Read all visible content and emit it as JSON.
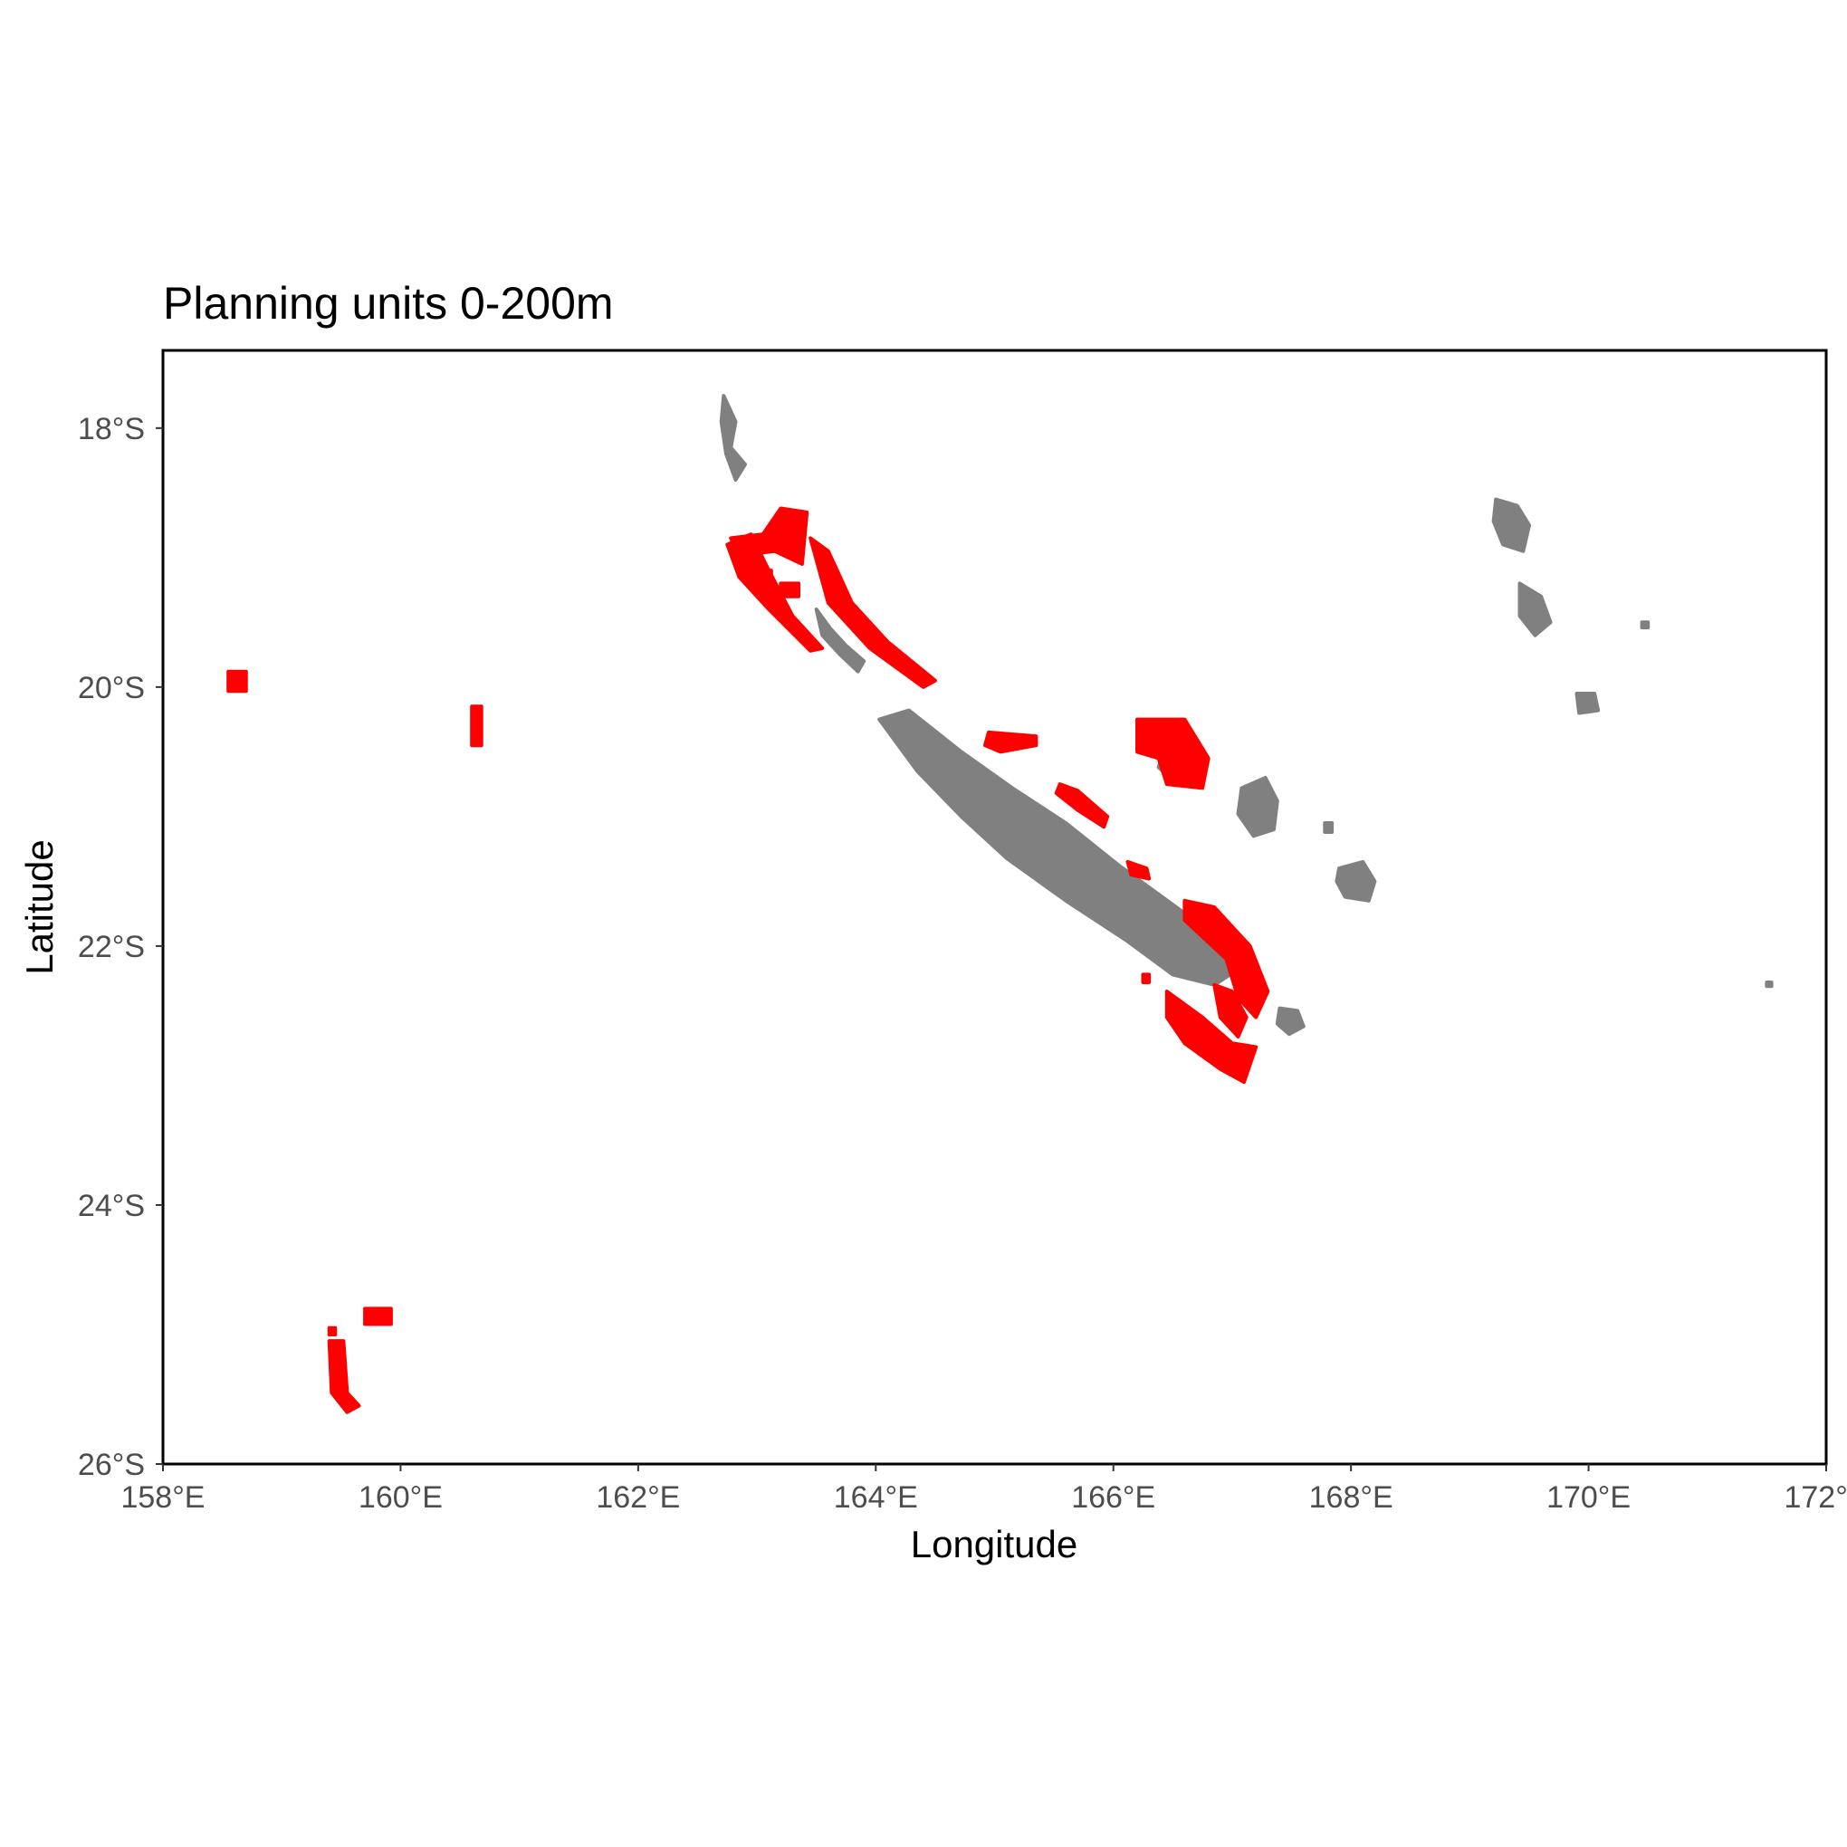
{
  "title": "Planning units 0-200m",
  "x_axis": {
    "label": "Longitude",
    "range": [
      158,
      172
    ],
    "ticks": [
      {
        "value": 158,
        "label": "158°E"
      },
      {
        "value": 160,
        "label": "160°E"
      },
      {
        "value": 162,
        "label": "162°E"
      },
      {
        "value": 164,
        "label": "164°E"
      },
      {
        "value": 166,
        "label": "166°E"
      },
      {
        "value": 168,
        "label": "168°E"
      },
      {
        "value": 170,
        "label": "170°E"
      },
      {
        "value": 172,
        "label": "172°E"
      }
    ]
  },
  "y_axis": {
    "label": "Latitude",
    "range": [
      -26,
      -17.4
    ],
    "ticks": [
      {
        "value": -18,
        "label": "18°S"
      },
      {
        "value": -20,
        "label": "20°S"
      },
      {
        "value": -22,
        "label": "22°S"
      },
      {
        "value": -24,
        "label": "24°S"
      },
      {
        "value": -26,
        "label": "26°S"
      }
    ]
  },
  "colors": {
    "land": "#808080",
    "planning_units": "#ff0000",
    "panel_border": "#000000",
    "tick_text": "#4d4d4d"
  },
  "land_features": [
    {
      "id": "grande-terre",
      "coords": [
        [
          164.03,
          -20.25
        ],
        [
          164.28,
          -20.18
        ],
        [
          164.72,
          -20.5
        ],
        [
          165.15,
          -20.78
        ],
        [
          165.6,
          -21.05
        ],
        [
          166.05,
          -21.38
        ],
        [
          166.5,
          -21.68
        ],
        [
          166.9,
          -21.95
        ],
        [
          167.05,
          -22.18
        ],
        [
          166.85,
          -22.3
        ],
        [
          166.5,
          -22.22
        ],
        [
          166.1,
          -21.95
        ],
        [
          165.6,
          -21.65
        ],
        [
          165.1,
          -21.32
        ],
        [
          164.72,
          -21.0
        ],
        [
          164.35,
          -20.65
        ]
      ]
    },
    {
      "id": "belep-isles",
      "coords": [
        [
          162.72,
          -17.75
        ],
        [
          162.82,
          -17.95
        ],
        [
          162.78,
          -18.15
        ],
        [
          162.9,
          -18.28
        ],
        [
          162.82,
          -18.4
        ],
        [
          162.74,
          -18.2
        ],
        [
          162.7,
          -17.95
        ]
      ]
    },
    {
      "id": "north-lagoon-islets",
      "coords": [
        [
          163.5,
          -19.4
        ],
        [
          163.62,
          -19.55
        ],
        [
          163.75,
          -19.68
        ],
        [
          163.9,
          -19.8
        ],
        [
          163.85,
          -19.88
        ],
        [
          163.7,
          -19.75
        ],
        [
          163.55,
          -19.6
        ]
      ]
    },
    {
      "id": "ouvea-atoll",
      "coords": [
        [
          166.43,
          -20.48
        ],
        [
          166.58,
          -20.42
        ],
        [
          166.67,
          -20.55
        ],
        [
          166.6,
          -20.68
        ],
        [
          166.48,
          -20.7
        ],
        [
          166.38,
          -20.62
        ]
      ]
    },
    {
      "id": "lifou",
      "coords": [
        [
          167.08,
          -20.78
        ],
        [
          167.28,
          -20.7
        ],
        [
          167.38,
          -20.88
        ],
        [
          167.35,
          -21.1
        ],
        [
          167.18,
          -21.15
        ],
        [
          167.05,
          -20.98
        ]
      ]
    },
    {
      "id": "mare",
      "coords": [
        [
          167.9,
          -21.4
        ],
        [
          168.1,
          -21.35
        ],
        [
          168.2,
          -21.5
        ],
        [
          168.15,
          -21.65
        ],
        [
          167.95,
          -21.62
        ],
        [
          167.88,
          -21.5
        ]
      ]
    },
    {
      "id": "tiga",
      "coords": [
        [
          167.78,
          -21.05
        ],
        [
          167.84,
          -21.05
        ],
        [
          167.84,
          -21.12
        ],
        [
          167.78,
          -21.12
        ]
      ]
    },
    {
      "id": "isle-of-pines",
      "coords": [
        [
          167.4,
          -22.48
        ],
        [
          167.55,
          -22.5
        ],
        [
          167.6,
          -22.62
        ],
        [
          167.48,
          -22.68
        ],
        [
          167.38,
          -22.6
        ]
      ]
    },
    {
      "id": "chesterfield-n",
      "coords": [
        [
          169.22,
          -18.55
        ],
        [
          169.4,
          -18.6
        ],
        [
          169.5,
          -18.75
        ],
        [
          169.45,
          -18.95
        ],
        [
          169.28,
          -18.9
        ],
        [
          169.2,
          -18.72
        ]
      ]
    },
    {
      "id": "chesterfield-mid",
      "coords": [
        [
          169.42,
          -19.2
        ],
        [
          169.6,
          -19.3
        ],
        [
          169.68,
          -19.5
        ],
        [
          169.55,
          -19.6
        ],
        [
          169.42,
          -19.45
        ]
      ]
    },
    {
      "id": "chesterfield-s",
      "coords": [
        [
          169.9,
          -20.05
        ],
        [
          170.05,
          -20.05
        ],
        [
          170.08,
          -20.18
        ],
        [
          169.92,
          -20.2
        ]
      ]
    },
    {
      "id": "chesterfield-islet",
      "coords": [
        [
          170.45,
          -19.5
        ],
        [
          170.5,
          -19.5
        ],
        [
          170.5,
          -19.54
        ],
        [
          170.45,
          -19.54
        ]
      ]
    },
    {
      "id": "walpole",
      "coords": [
        [
          171.5,
          -22.28
        ],
        [
          171.54,
          -22.28
        ],
        [
          171.54,
          -22.31
        ],
        [
          171.5,
          -22.31
        ]
      ]
    }
  ],
  "planning_unit_features": [
    {
      "id": "north-lagoon-west-arm",
      "coords": [
        [
          162.75,
          -18.9
        ],
        [
          162.95,
          -18.82
        ],
        [
          163.1,
          -19.1
        ],
        [
          163.3,
          -19.45
        ],
        [
          163.55,
          -19.7
        ],
        [
          163.45,
          -19.72
        ],
        [
          163.1,
          -19.4
        ],
        [
          162.85,
          -19.15
        ]
      ]
    },
    {
      "id": "north-lagoon-north",
      "coords": [
        [
          162.78,
          -18.85
        ],
        [
          163.05,
          -18.82
        ],
        [
          163.2,
          -18.62
        ],
        [
          163.42,
          -18.65
        ],
        [
          163.38,
          -19.05
        ],
        [
          163.15,
          -18.95
        ],
        [
          162.85,
          -18.98
        ]
      ]
    },
    {
      "id": "north-lagoon-east-arm",
      "coords": [
        [
          163.45,
          -18.85
        ],
        [
          163.6,
          -18.95
        ],
        [
          163.8,
          -19.35
        ],
        [
          164.1,
          -19.65
        ],
        [
          164.5,
          -19.95
        ],
        [
          164.4,
          -20.0
        ],
        [
          163.95,
          -19.7
        ],
        [
          163.6,
          -19.35
        ]
      ]
    },
    {
      "id": "north-lagoon-patch",
      "coords": [
        [
          163.2,
          -19.2
        ],
        [
          163.35,
          -19.2
        ],
        [
          163.35,
          -19.3
        ],
        [
          163.2,
          -19.3
        ]
      ]
    },
    {
      "id": "north-lagoon-patch-2",
      "coords": [
        [
          163.0,
          -19.1
        ],
        [
          163.12,
          -19.1
        ],
        [
          163.12,
          -19.2
        ],
        [
          163.0,
          -19.2
        ]
      ]
    },
    {
      "id": "east-coast-reef-a",
      "coords": [
        [
          164.95,
          -20.35
        ],
        [
          165.35,
          -20.38
        ],
        [
          165.35,
          -20.45
        ],
        [
          165.05,
          -20.5
        ],
        [
          164.92,
          -20.45
        ]
      ]
    },
    {
      "id": "east-coast-reef-b",
      "coords": [
        [
          165.55,
          -20.75
        ],
        [
          165.7,
          -20.8
        ],
        [
          165.95,
          -21.0
        ],
        [
          165.92,
          -21.08
        ],
        [
          165.7,
          -20.95
        ],
        [
          165.52,
          -20.82
        ]
      ]
    },
    {
      "id": "east-coast-reef-c",
      "coords": [
        [
          166.12,
          -21.35
        ],
        [
          166.28,
          -21.4
        ],
        [
          166.3,
          -21.48
        ],
        [
          166.15,
          -21.45
        ]
      ]
    },
    {
      "id": "ouvea-reef",
      "coords": [
        [
          166.2,
          -20.25
        ],
        [
          166.6,
          -20.25
        ],
        [
          166.8,
          -20.55
        ],
        [
          166.75,
          -20.78
        ],
        [
          166.45,
          -20.75
        ],
        [
          166.38,
          -20.55
        ],
        [
          166.2,
          -20.5
        ]
      ]
    },
    {
      "id": "south-lagoon-east",
      "coords": [
        [
          166.6,
          -21.65
        ],
        [
          166.85,
          -21.7
        ],
        [
          167.15,
          -22.0
        ],
        [
          167.3,
          -22.35
        ],
        [
          167.2,
          -22.55
        ],
        [
          167.05,
          -22.4
        ],
        [
          166.95,
          -22.1
        ],
        [
          166.6,
          -21.8
        ]
      ]
    },
    {
      "id": "south-lagoon-south",
      "coords": [
        [
          166.45,
          -22.35
        ],
        [
          166.75,
          -22.55
        ],
        [
          167.0,
          -22.75
        ],
        [
          167.2,
          -22.78
        ],
        [
          167.1,
          -23.05
        ],
        [
          166.9,
          -22.95
        ],
        [
          166.6,
          -22.75
        ],
        [
          166.45,
          -22.55
        ]
      ]
    },
    {
      "id": "south-lagoon-inner",
      "coords": [
        [
          166.85,
          -22.3
        ],
        [
          167.0,
          -22.35
        ],
        [
          167.12,
          -22.55
        ],
        [
          167.05,
          -22.7
        ],
        [
          166.9,
          -22.55
        ]
      ]
    },
    {
      "id": "west-coast-islet",
      "coords": [
        [
          166.25,
          -22.22
        ],
        [
          166.3,
          -22.22
        ],
        [
          166.3,
          -22.28
        ],
        [
          166.25,
          -22.28
        ]
      ]
    },
    {
      "id": "bellona-north",
      "coords": [
        [
          158.55,
          -19.88
        ],
        [
          158.7,
          -19.88
        ],
        [
          158.7,
          -20.03
        ],
        [
          158.55,
          -20.03
        ]
      ]
    },
    {
      "id": "bellona-east",
      "coords": [
        [
          160.6,
          -20.15
        ],
        [
          160.68,
          -20.15
        ],
        [
          160.68,
          -20.45
        ],
        [
          160.6,
          -20.45
        ]
      ]
    },
    {
      "id": "bellona-south-west",
      "coords": [
        [
          159.4,
          -25.05
        ],
        [
          159.52,
          -25.05
        ],
        [
          159.55,
          -25.45
        ],
        [
          159.65,
          -25.55
        ],
        [
          159.55,
          -25.6
        ],
        [
          159.42,
          -25.45
        ]
      ]
    },
    {
      "id": "bellona-south-patch",
      "coords": [
        [
          159.7,
          -24.8
        ],
        [
          159.92,
          -24.8
        ],
        [
          159.92,
          -24.92
        ],
        [
          159.7,
          -24.92
        ]
      ]
    },
    {
      "id": "bellona-south-islet",
      "coords": [
        [
          159.4,
          -24.95
        ],
        [
          159.45,
          -24.95
        ],
        [
          159.45,
          -25.0
        ],
        [
          159.4,
          -25.0
        ]
      ]
    }
  ]
}
